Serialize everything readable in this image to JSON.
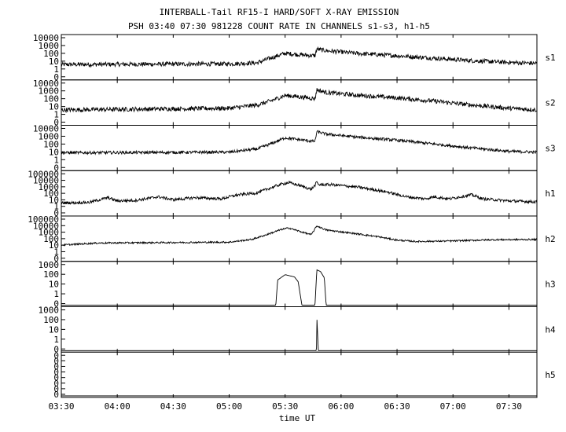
{
  "chart_data": {
    "type": "line",
    "title": "INTERBALL-Tail RF15-I HARD/SOFT X-RAY EMISSION",
    "subtitle": "PSH 03:40 07:30 981228  COUNT RATE IN CHANNELS s1-s3, h1-h5",
    "xlabel": "time UT",
    "x_range_minutes": [
      210,
      465
    ],
    "x_ticks": [
      "03:30",
      "04:00",
      "04:30",
      "05:00",
      "05:30",
      "06:00",
      "06:30",
      "07:00",
      "07:30"
    ],
    "x_tick_minutes": [
      210,
      240,
      270,
      300,
      330,
      360,
      390,
      420,
      450
    ],
    "y_scale": "log",
    "series": [
      {
        "name": "s1",
        "ylim": [
          0.1,
          10000
        ],
        "y_ticks": [
          "10000",
          "1000",
          "100",
          "10",
          "1",
          "0"
        ],
        "points": [
          [
            210,
            5
          ],
          [
            300,
            6
          ],
          [
            315,
            8
          ],
          [
            322,
            30
          ],
          [
            330,
            120
          ],
          [
            338,
            80
          ],
          [
            346,
            60
          ],
          [
            347,
            400
          ],
          [
            352,
            250
          ],
          [
            370,
            110
          ],
          [
            390,
            60
          ],
          [
            410,
            30
          ],
          [
            430,
            15
          ],
          [
            450,
            9
          ],
          [
            465,
            7
          ]
        ],
        "noise": 0.09
      },
      {
        "name": "s2",
        "ylim": [
          0.1,
          10000
        ],
        "y_ticks": [
          "10000",
          "1000",
          "100",
          "10",
          "1",
          "0"
        ],
        "points": [
          [
            210,
            5
          ],
          [
            300,
            8
          ],
          [
            315,
            20
          ],
          [
            322,
            60
          ],
          [
            330,
            300
          ],
          [
            338,
            200
          ],
          [
            346,
            120
          ],
          [
            347,
            1500
          ],
          [
            352,
            700
          ],
          [
            370,
            300
          ],
          [
            390,
            150
          ],
          [
            410,
            60
          ],
          [
            430,
            20
          ],
          [
            450,
            8
          ],
          [
            465,
            5
          ]
        ],
        "noise": 0.09
      },
      {
        "name": "s3",
        "ylim": [
          0.1,
          10000
        ],
        "y_ticks": [
          "10000",
          "1000",
          "100",
          "10",
          "1",
          "0"
        ],
        "points": [
          [
            210,
            10
          ],
          [
            300,
            12
          ],
          [
            315,
            30
          ],
          [
            322,
            120
          ],
          [
            330,
            700
          ],
          [
            338,
            400
          ],
          [
            346,
            250
          ],
          [
            347,
            4000
          ],
          [
            352,
            2000
          ],
          [
            370,
            800
          ],
          [
            390,
            350
          ],
          [
            410,
            120
          ],
          [
            430,
            40
          ],
          [
            450,
            15
          ],
          [
            465,
            12
          ]
        ],
        "noise": 0.06
      },
      {
        "name": "h1",
        "ylim": [
          0.1,
          100000
        ],
        "y_ticks": [
          "100000",
          "10000",
          "1000",
          "100",
          "10",
          "1",
          "0"
        ],
        "points": [
          [
            210,
            5
          ],
          [
            225,
            6
          ],
          [
            235,
            30
          ],
          [
            240,
            10
          ],
          [
            250,
            12
          ],
          [
            262,
            40
          ],
          [
            270,
            15
          ],
          [
            282,
            30
          ],
          [
            296,
            20
          ],
          [
            300,
            40
          ],
          [
            305,
            80
          ],
          [
            315,
            150
          ],
          [
            320,
            500
          ],
          [
            328,
            3000
          ],
          [
            332,
            5000
          ],
          [
            338,
            1800
          ],
          [
            344,
            500
          ],
          [
            346,
            2000
          ],
          [
            347,
            6000
          ],
          [
            348,
            2500
          ],
          [
            355,
            2500
          ],
          [
            370,
            1000
          ],
          [
            385,
            200
          ],
          [
            395,
            40
          ],
          [
            405,
            20
          ],
          [
            410,
            40
          ],
          [
            418,
            20
          ],
          [
            430,
            80
          ],
          [
            436,
            20
          ],
          [
            450,
            10
          ],
          [
            465,
            7
          ]
        ],
        "noise": 0.07
      },
      {
        "name": "h2",
        "ylim": [
          0.1,
          100000
        ],
        "y_ticks": [
          "100000",
          "10000",
          "1000",
          "100",
          "10",
          "1",
          "0"
        ],
        "points": [
          [
            210,
            15
          ],
          [
            230,
            30
          ],
          [
            300,
            40
          ],
          [
            312,
            100
          ],
          [
            320,
            500
          ],
          [
            328,
            3000
          ],
          [
            332,
            5000
          ],
          [
            338,
            1500
          ],
          [
            344,
            500
          ],
          [
            347,
            10000
          ],
          [
            352,
            2500
          ],
          [
            370,
            600
          ],
          [
            380,
            250
          ],
          [
            390,
            80
          ],
          [
            400,
            50
          ],
          [
            420,
            60
          ],
          [
            440,
            90
          ],
          [
            465,
            100
          ]
        ],
        "noise": 0.04
      },
      {
        "name": "h3",
        "ylim": [
          0.1,
          1000
        ],
        "y_ticks": [
          "1000",
          "100",
          "10",
          "1",
          "0"
        ],
        "points": [
          [
            210,
            0.1
          ],
          [
            325,
            0.1
          ],
          [
            326,
            30
          ],
          [
            330,
            100
          ],
          [
            335,
            60
          ],
          [
            337,
            20
          ],
          [
            339,
            0.1
          ],
          [
            346,
            0.1
          ],
          [
            347,
            300
          ],
          [
            349,
            200
          ],
          [
            351,
            50
          ],
          [
            352,
            0.1
          ],
          [
            465,
            0.1
          ]
        ],
        "noise": 0.0
      },
      {
        "name": "h4",
        "ylim": [
          0.1,
          1000
        ],
        "y_ticks": [
          "1000",
          "100",
          "10",
          "1",
          "0"
        ],
        "points": [
          [
            210,
            0.1
          ],
          [
            346.8,
            0.1
          ],
          [
            347,
            200
          ],
          [
            347.8,
            0.1
          ],
          [
            465,
            0.1
          ]
        ],
        "noise": 0.0
      },
      {
        "name": "h5",
        "ylim": [
          0.1,
          1000
        ],
        "y_ticks": [
          "0",
          "0",
          "0",
          "0",
          "0",
          "0",
          "0",
          "0"
        ],
        "points": [
          [
            210,
            0.1
          ],
          [
            465,
            0.1
          ]
        ],
        "noise": 0.0
      }
    ]
  }
}
